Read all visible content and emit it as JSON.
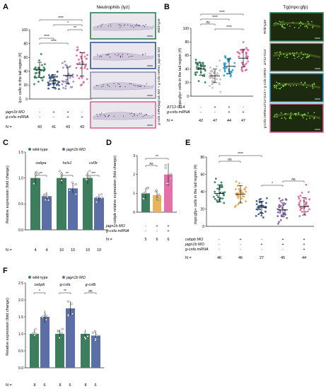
{
  "panels": {
    "A": {
      "letter": "A",
      "header": "Neutrophils (lyz)",
      "ylabel": "lyz+ cells in the tail region (#)",
      "row_labels": [
        "jagn1b MO",
        "g-csfa mRNA"
      ],
      "row_signs": [
        [
          "-",
          "+",
          "+",
          "-"
        ],
        [
          "-",
          "-",
          "+",
          "+"
        ]
      ],
      "n_label": "N =",
      "n": [
        "43",
        "41",
        "43",
        "43"
      ],
      "sig": [
        "****",
        "*",
        "**",
        "****",
        "****"
      ],
      "images": [
        "Wild-type",
        "jagn1b MO",
        "jagn1b MO + g-csfa mRNA",
        "g-csfa mRNA"
      ],
      "chart_data": {
        "type": "scatter",
        "ylim": [
          0,
          100
        ],
        "ticks": [
          0,
          20,
          40,
          60,
          80,
          100
        ],
        "groups": [
          {
            "color": "#2e7d56",
            "mean": 42,
            "sd": 11
          },
          {
            "color": "#34558b",
            "mean": 26,
            "sd": 9
          },
          {
            "color": "#9a8fb8",
            "mean": 34,
            "sd": 12
          },
          {
            "color": "#d9679a",
            "mean": 50,
            "sd": 17
          }
        ]
      }
    },
    "B": {
      "letter": "B",
      "header": "Tg(mpo:gfp)",
      "ylabel": "mpo:gfp+ cells in the tail region (#)",
      "row_labels": [
        "ΔT12-G14",
        "g-csfa mRNA"
      ],
      "row_signs": [
        [
          "-",
          "+",
          "+",
          "-"
        ],
        [
          "-",
          "-",
          "+",
          "+"
        ]
      ],
      "n_label": "N =",
      "n": [
        "42",
        "47",
        "44",
        "47"
      ],
      "sig": [
        "ns",
        "****",
        "****",
        "****"
      ],
      "images": [
        "Wild-type",
        "ΔT12-G14",
        "ΔT12-G14 + g-csfa mRNA",
        "g-csfa mRNA"
      ],
      "chart_data": {
        "type": "scatter",
        "ylim": [
          0,
          100
        ],
        "ticks": [
          0,
          20,
          40,
          60,
          80,
          100
        ],
        "groups": [
          {
            "color": "#2e7d56",
            "mean": 40,
            "sd": 9
          },
          {
            "color": "#bdbdbd",
            "mean": 30,
            "sd": 10
          },
          {
            "color": "#2b9fd1",
            "mean": 44,
            "sd": 11
          },
          {
            "color": "#d9679a",
            "mean": 56,
            "sd": 13
          }
        ]
      }
    },
    "C": {
      "letter": "C",
      "ylabel": "Relative expression (fold change)",
      "legend": [
        "wild-type",
        "jagn1b MO"
      ],
      "genes": [
        "cebpa",
        "hcls1",
        "csf3r"
      ],
      "sig": [
        "**",
        "**",
        "***"
      ],
      "n_label": "N =",
      "n": [
        "4",
        "4",
        "10",
        "10",
        "10",
        "10"
      ],
      "chart_data": {
        "type": "bar",
        "ylim": [
          0,
          1.5
        ],
        "ticks": [
          0.0,
          0.5,
          1.0,
          1.5
        ],
        "series": [
          {
            "name": "wild-type",
            "color": "#3b7d5c",
            "values": [
              1.0,
              1.0,
              1.0
            ]
          },
          {
            "name": "jagn1b MO",
            "color": "#5b6ea6",
            "values": [
              0.65,
              0.8,
              0.62
            ]
          }
        ],
        "categories": [
          "cebpa",
          "hcls1",
          "csf3r"
        ]
      }
    },
    "D": {
      "letter": "D",
      "ylabel": "cebpb relative expression (fold change)",
      "row_labels": [
        "jagn1b MO",
        "g-csfa mRNA"
      ],
      "row_signs": [
        [
          "-",
          "+",
          "+"
        ],
        [
          "-",
          "-",
          "+"
        ]
      ],
      "sig": [
        "ns",
        "**"
      ],
      "n_label": "N =",
      "n": [
        "5",
        "6",
        "6"
      ],
      "chart_data": {
        "type": "bar",
        "ylim": [
          0,
          3
        ],
        "ticks": [
          0,
          1,
          2,
          3
        ],
        "categories": [
          "wild-type",
          "jagn1b MO",
          "jagn1b MO + g-csfa mRNA"
        ],
        "values": [
          1.0,
          0.9,
          2.0
        ],
        "colors": [
          "#3b7d5c",
          "#e8b45a",
          "#e56fa8"
        ]
      }
    },
    "E": {
      "letter": "E",
      "ylabel": "mpo:gfp+ cells in the tail region (#)",
      "row_labels": [
        "cebpb MO",
        "jagn1b MO",
        "g-csfa mRNA"
      ],
      "row_signs": [
        [
          "-",
          "+",
          "-",
          "+",
          "+"
        ],
        [
          "-",
          "-",
          "+",
          "+",
          "+"
        ],
        [
          "-",
          "-",
          "-",
          "-",
          "+"
        ]
      ],
      "sig": [
        "ns",
        "****",
        "*",
        "ns"
      ],
      "n_label": "N =",
      "n": [
        "46",
        "46",
        "27",
        "45",
        "44"
      ],
      "chart_data": {
        "type": "scatter",
        "ylim": [
          0,
          80
        ],
        "ticks": [
          0,
          20,
          40,
          60,
          80
        ],
        "groups": [
          {
            "color": "#2e7d56",
            "mean": 38,
            "sd": 10
          },
          {
            "color": "#e8a43a",
            "mean": 37,
            "sd": 10
          },
          {
            "color": "#34558b",
            "mean": 22,
            "sd": 7
          },
          {
            "color": "#7d5aa6",
            "mean": 19,
            "sd": 8
          },
          {
            "color": "#d9679a",
            "mean": 23,
            "sd": 10
          }
        ]
      }
    },
    "F": {
      "letter": "F",
      "ylabel": "Relative expression (fold change)",
      "legend": [
        "wild-type",
        "jagn1b MO"
      ],
      "genes": [
        "cebpb",
        "g-csfa",
        "g-csfb"
      ],
      "sig": [
        "*",
        "**",
        "ns"
      ],
      "n_label": "N =",
      "n": [
        "8",
        "6",
        "8",
        "6",
        "8",
        "6"
      ],
      "chart_data": {
        "type": "bar",
        "ylim": [
          0,
          2.5
        ],
        "ticks": [
          0.0,
          0.5,
          1.0,
          1.5,
          2.0,
          2.5
        ],
        "series": [
          {
            "name": "wild-type",
            "color": "#3b7d5c",
            "values": [
              1.0,
              1.0,
              1.0
            ]
          },
          {
            "name": "jagn1b MO",
            "color": "#5b6ea6",
            "values": [
              1.5,
              1.75,
              0.95
            ]
          }
        ],
        "categories": [
          "cebpb",
          "g-csfa",
          "g-csfb"
        ]
      }
    }
  },
  "colors": {
    "wildtype_frame": "#2e7d56",
    "mo_frame": "#34558b",
    "rescue_frame": "#8f8fa8",
    "mrna_frame": "#d9679a",
    "b_frame2": "#9e9e9e",
    "b_frame3": "#2b9fd1"
  }
}
